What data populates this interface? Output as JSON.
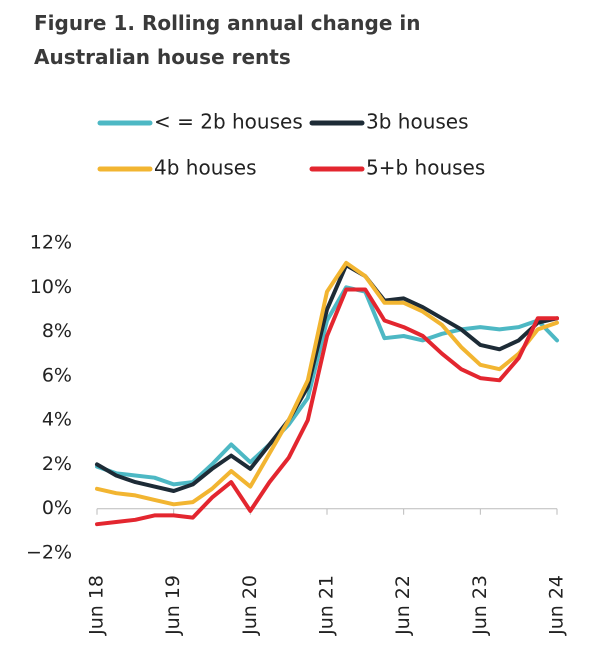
{
  "chart_data": {
    "type": "line",
    "title": "Figure 1. Rolling annual change in Australian house rents",
    "categories": [
      "Jun 18",
      null,
      null,
      null,
      "Jun 19",
      null,
      null,
      null,
      "Jun 20",
      null,
      null,
      null,
      "Jun 21",
      null,
      null,
      null,
      "Jun 22",
      null,
      null,
      null,
      "Jun 23",
      null,
      null,
      null,
      "Jun 24"
    ],
    "series": [
      {
        "name": "< = 2b houses",
        "color": "#4db8c4",
        "values": [
          1.9,
          1.6,
          1.5,
          1.4,
          1.1,
          1.2,
          2.0,
          2.9,
          2.1,
          2.9,
          3.8,
          5.0,
          8.5,
          10.0,
          9.8,
          7.7,
          7.8,
          7.6,
          7.9,
          8.1,
          8.2,
          8.1,
          8.2,
          8.5,
          7.6
        ]
      },
      {
        "name": "3b houses",
        "color": "#1d2b36",
        "values": [
          2.0,
          1.5,
          1.2,
          1.0,
          0.8,
          1.1,
          1.8,
          2.4,
          1.8,
          2.9,
          4.0,
          5.5,
          9.0,
          11.0,
          10.5,
          9.4,
          9.5,
          9.1,
          8.6,
          8.1,
          7.4,
          7.2,
          7.6,
          8.4,
          8.6
        ]
      },
      {
        "name": "4b houses",
        "color": "#f2b531",
        "values": [
          0.9,
          0.7,
          0.6,
          0.4,
          0.2,
          0.3,
          0.9,
          1.7,
          1.0,
          2.5,
          4.0,
          5.8,
          9.8,
          11.1,
          10.5,
          9.3,
          9.3,
          8.9,
          8.3,
          7.3,
          6.5,
          6.3,
          7.0,
          8.1,
          8.4
        ]
      },
      {
        "name": "5+b houses",
        "color": "#e3262f",
        "values": [
          -0.7,
          -0.6,
          -0.5,
          -0.3,
          -0.3,
          -0.4,
          0.5,
          1.2,
          -0.1,
          1.2,
          2.3,
          4.0,
          7.8,
          9.9,
          9.9,
          8.5,
          8.2,
          7.8,
          7.0,
          6.3,
          5.9,
          5.8,
          6.8,
          8.6,
          8.6
        ]
      }
    ],
    "ylim": [
      -2,
      12
    ],
    "yticks": [
      {
        "value": -2,
        "label": "−2%"
      },
      {
        "value": 0,
        "label": "0%"
      },
      {
        "value": 2,
        "label": "2%"
      },
      {
        "value": 4,
        "label": "4%"
      },
      {
        "value": 6,
        "label": "6%"
      },
      {
        "value": 8,
        "label": "8%"
      },
      {
        "value": 10,
        "label": "10%"
      },
      {
        "value": 12,
        "label": "12%"
      }
    ],
    "grid": false
  }
}
